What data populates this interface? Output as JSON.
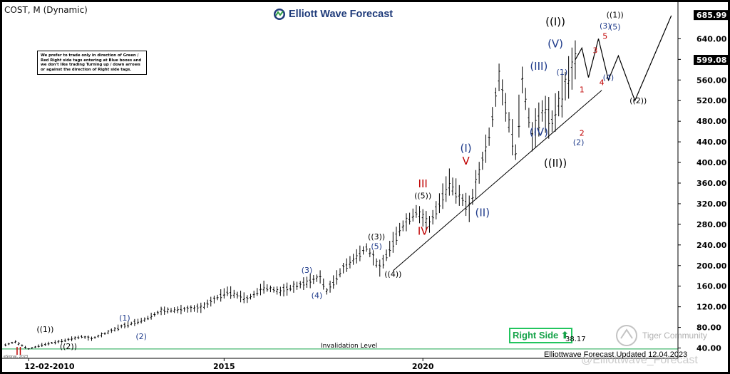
{
  "symbol_label": "COST, M (Dynamic)",
  "brand": {
    "name": "Elliott Wave Forecast"
  },
  "note_text": "We prefer to trade only in direction of Green / Red Right side tags entering at Blue boxes and we don't like trading Turning up / down arrows or against the direction of Right side tags.",
  "right_side_label": "Right Side",
  "invalidation": {
    "label": "Invalidation Level",
    "value": "38.17"
  },
  "footer_text": "Elliottwave Forecast Updated 12.04.2023",
  "watermark_text": "Tiger Community",
  "handle_text": "@Elliottwave_Forecast",
  "esignal_text": "eSignal, 2023",
  "colors": {
    "black": "#000000",
    "blue": "#1e3a8a",
    "red": "#c00000",
    "green": "#16a34a",
    "price_tag_bg": "#000000"
  },
  "chart_data": {
    "type": "line",
    "timeframe": "monthly",
    "x_range": [
      "2009-06",
      "2026-06"
    ],
    "ylim": [
      20,
      700
    ],
    "y_ticks": [
      40,
      80,
      120,
      160,
      200,
      240,
      280,
      320,
      360,
      400,
      440,
      480,
      520,
      560,
      600,
      640
    ],
    "x_ticks": [
      {
        "label": "12-02-2010",
        "x": "2010-02"
      },
      {
        "label": "2015",
        "x": "2015-01"
      },
      {
        "label": "2020",
        "x": "2020-01"
      }
    ],
    "price_tags": [
      {
        "label": "685.99",
        "value": 686
      },
      {
        "label": "599.08",
        "value": 599.08
      }
    ],
    "invalidation_level": 38.17,
    "price_path": [
      [
        "2009-07",
        46
      ],
      [
        "2009-10",
        52
      ],
      [
        "2010-02",
        38
      ],
      [
        "2010-06",
        46
      ],
      [
        "2011-01",
        55
      ],
      [
        "2011-06",
        62
      ],
      [
        "2011-09",
        58
      ],
      [
        "2012-01",
        68
      ],
      [
        "2012-06",
        82
      ],
      [
        "2013-01",
        95
      ],
      [
        "2013-06",
        112
      ],
      [
        "2014-01",
        115
      ],
      [
        "2014-06",
        118
      ],
      [
        "2015-02",
        150
      ],
      [
        "2015-08",
        135
      ],
      [
        "2016-01",
        158
      ],
      [
        "2016-06",
        150
      ],
      [
        "2017-01",
        165
      ],
      [
        "2017-06",
        178
      ],
      [
        "2017-08",
        150
      ],
      [
        "2018-01",
        195
      ],
      [
        "2018-08",
        235
      ],
      [
        "2018-12",
        195
      ],
      [
        "2019-06",
        270
      ],
      [
        "2019-11",
        305
      ],
      [
        "2020-03",
        280
      ],
      [
        "2020-09",
        362
      ],
      [
        "2021-03",
        310
      ],
      [
        "2021-09",
        450
      ],
      [
        "2021-12",
        565
      ],
      [
        "2022-05",
        420
      ],
      [
        "2022-07",
        560
      ],
      [
        "2022-10",
        450
      ],
      [
        "2023-01",
        500
      ],
      [
        "2023-04",
        480
      ],
      [
        "2023-11",
        599.08
      ]
    ],
    "projection_path": [
      [
        "2023-11",
        599.08
      ],
      [
        "2024-01",
        622
      ],
      [
        "2024-03",
        565
      ],
      [
        "2024-06",
        640
      ],
      [
        "2024-09",
        560
      ],
      [
        "2024-12",
        607
      ],
      [
        "2025-05",
        520
      ],
      [
        "2026-04",
        685
      ]
    ],
    "trend_lines": [
      [
        [
          "2019-04",
          190
        ],
        [
          "2024-07",
          540
        ]
      ],
      [
        [
          "2009-06",
          38.17
        ],
        [
          "2026-06",
          38.17
        ]
      ]
    ],
    "wave_labels": [
      {
        "text": "II",
        "x": "2009-11",
        "y": 27,
        "color": "red",
        "size": 15
      },
      {
        "text": "((1))",
        "x": "2010-07",
        "y": 71,
        "color": "black",
        "size": 11
      },
      {
        "text": "((2))",
        "x": "2011-02",
        "y": 38,
        "color": "black",
        "size": 11
      },
      {
        "text": "(1)",
        "x": "2012-07",
        "y": 93,
        "color": "blue",
        "size": 11
      },
      {
        "text": "(2)",
        "x": "2012-12",
        "y": 57,
        "color": "blue",
        "size": 11
      },
      {
        "text": "(3)",
        "x": "2017-02",
        "y": 186,
        "color": "blue",
        "size": 11
      },
      {
        "text": "(4)",
        "x": "2017-05",
        "y": 137,
        "color": "blue",
        "size": 11
      },
      {
        "text": "((3))",
        "x": "2018-11",
        "y": 251,
        "color": "black",
        "size": 11
      },
      {
        "text": "(5)",
        "x": "2018-11",
        "y": 232,
        "color": "blue",
        "size": 11
      },
      {
        "text": "((4))",
        "x": "2019-04",
        "y": 178,
        "color": "black",
        "size": 11
      },
      {
        "text": "III",
        "x": "2020-01",
        "y": 352,
        "color": "red",
        "size": 15
      },
      {
        "text": "((5))",
        "x": "2020-01",
        "y": 330,
        "color": "black",
        "size": 11
      },
      {
        "text": "IV",
        "x": "2020-01",
        "y": 260,
        "color": "red",
        "size": 15
      },
      {
        "text": "(I)",
        "x": "2021-02",
        "y": 421,
        "color": "blue",
        "size": 15
      },
      {
        "text": "V",
        "x": "2021-02",
        "y": 396,
        "color": "red",
        "size": 15
      },
      {
        "text": "(II)",
        "x": "2021-07",
        "y": 296,
        "color": "blue",
        "size": 15
      },
      {
        "text": "(III)",
        "x": "2022-12",
        "y": 580,
        "color": "blue",
        "size": 15
      },
      {
        "text": "(IV)",
        "x": "2022-12",
        "y": 452,
        "color": "blue",
        "size": 15
      },
      {
        "text": "((I))",
        "x": "2023-05",
        "y": 666,
        "color": "black",
        "size": 15
      },
      {
        "text": "(V)",
        "x": "2023-05",
        "y": 623,
        "color": "blue",
        "size": 15
      },
      {
        "text": "((II))",
        "x": "2023-05",
        "y": 392,
        "color": "black",
        "size": 15
      },
      {
        "text": "(1)",
        "x": "2023-07",
        "y": 570,
        "color": "blue",
        "size": 11
      },
      {
        "text": "1",
        "x": "2024-01",
        "y": 536,
        "color": "red",
        "size": 11
      },
      {
        "text": "2",
        "x": "2024-01",
        "y": 452,
        "color": "red",
        "size": 11
      },
      {
        "text": "(2)",
        "x": "2023-12",
        "y": 434,
        "color": "blue",
        "size": 11
      },
      {
        "text": "3",
        "x": "2024-05",
        "y": 612,
        "color": "red",
        "size": 11
      },
      {
        "text": "4",
        "x": "2024-07",
        "y": 550,
        "color": "red",
        "size": 11
      },
      {
        "text": "(3)",
        "x": "2024-08",
        "y": 660,
        "color": "blue",
        "size": 11
      },
      {
        "text": "5",
        "x": "2024-08",
        "y": 640,
        "color": "red",
        "size": 11
      },
      {
        "text": "(4)",
        "x": "2024-09",
        "y": 560,
        "color": "blue",
        "size": 11
      },
      {
        "text": "(5)",
        "x": "2024-11",
        "y": 658,
        "color": "blue",
        "size": 11
      },
      {
        "text": "((1))",
        "x": "2024-11",
        "y": 681,
        "color": "black",
        "size": 11
      },
      {
        "text": "((2))",
        "x": "2025-06",
        "y": 515,
        "color": "black",
        "size": 11
      }
    ]
  }
}
